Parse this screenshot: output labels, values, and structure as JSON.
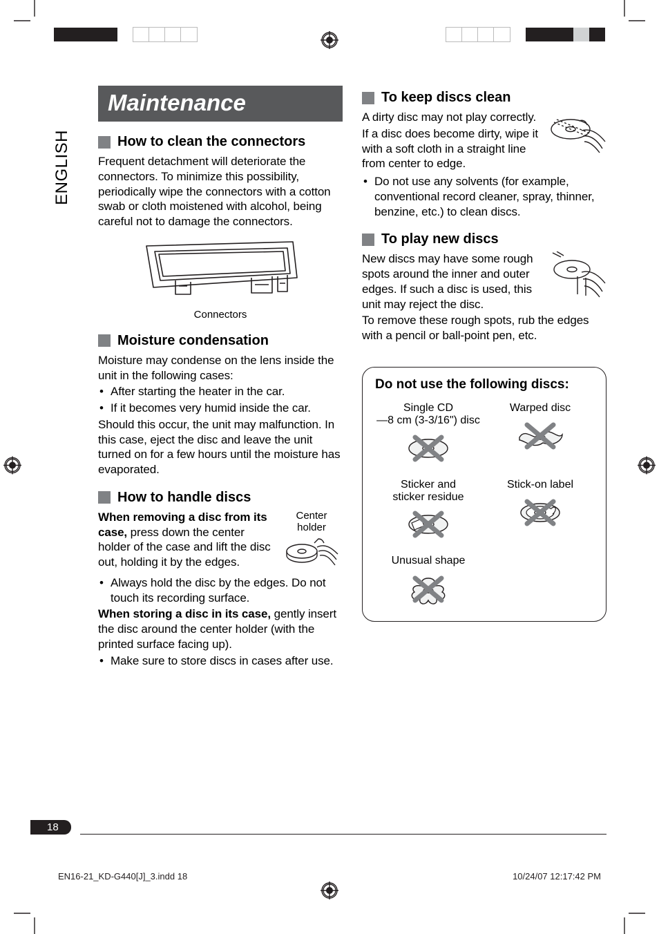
{
  "language_tab": "ENGLISH",
  "title": "Maintenance",
  "sections": {
    "connectors": {
      "heading": "How to clean the connectors",
      "body": "Frequent detachment will deteriorate the connectors. To minimize this possibility, periodically wipe the connectors with a cotton swab or cloth moistened with alcohol, being careful not to damage the connectors.",
      "caption": "Connectors"
    },
    "moisture": {
      "heading": "Moisture condensation",
      "intro": "Moisture may condense on the lens inside the unit in the following cases:",
      "bullets": [
        "After starting the heater in the car.",
        "If it becomes very humid inside the car."
      ],
      "outro": "Should this occur, the unit may malfunction. In this case, eject the disc and leave the unit turned on for a few hours until the moisture has evaporated."
    },
    "handle": {
      "heading": "How to handle discs",
      "p1_lead": "When removing a disc from its case,",
      "p1_rest": " press down the center holder of the case and lift the disc out, holding it by the edges.",
      "fig_caption": "Center holder",
      "bullet1": "Always hold the disc by the edges. Do not touch its recording surface.",
      "p2_lead": "When storing a disc in its case,",
      "p2_rest": " gently insert the disc around the center holder (with the printed surface facing up).",
      "bullet2": "Make sure to store discs in cases after use."
    },
    "keep_clean": {
      "heading": "To keep discs clean",
      "p1": "A dirty disc may not play correctly.",
      "p2": "If a disc does become dirty, wipe it with a soft cloth in a straight line from center to edge.",
      "bullet": "Do not use any solvents (for example, conventional record cleaner, spray, thinner, benzine, etc.) to clean discs."
    },
    "new_discs": {
      "heading": "To play new discs",
      "p1": "New discs may have some rough spots around the inner and outer edges. If such a disc is used, this unit may reject the disc.",
      "p2": "To remove these rough spots, rub the edges with a pencil or ball-point pen, etc."
    },
    "dnu": {
      "title": "Do not use the following discs:",
      "items": [
        {
          "label_line1": "Single CD",
          "label_line2": "—8 cm (3-3/16\") disc"
        },
        {
          "label_line1": "Warped disc",
          "label_line2": ""
        },
        {
          "label_line1": "Sticker and",
          "label_line2": "sticker residue"
        },
        {
          "label_line1": "Stick-on label",
          "label_line2": ""
        },
        {
          "label_line1": "Unusual shape",
          "label_line2": ""
        }
      ]
    }
  },
  "page_number": "18",
  "footer": {
    "left": "EN16-21_KD-G440[J]_3.indd   18",
    "right": "10/24/07   12:17:42 PM"
  },
  "colors": {
    "banner_bg": "#58595b",
    "square": "#808285",
    "x_stroke": "#808285",
    "line": "#231f20"
  },
  "colorbar_left": [
    "#231f20",
    "#231f20",
    "#231f20",
    "#231f20",
    "transparent",
    "#ffffff",
    "#ffffff",
    "#ffffff",
    "#ffffff"
  ],
  "colorbar_right": [
    "#ffffff",
    "#ffffff",
    "#ffffff",
    "#ffffff",
    "transparent",
    "#231f20",
    "#231f20",
    "#231f20",
    "#d1d3d4",
    "#231f20"
  ]
}
